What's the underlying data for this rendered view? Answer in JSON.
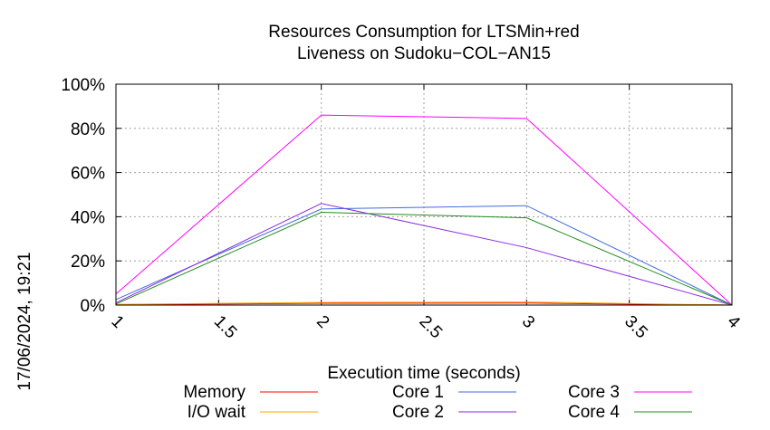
{
  "chart_data": {
    "type": "line",
    "title": "Resources Consumption for LTSMin+red",
    "subtitle": "Liveness on Sudoku−COL−AN15",
    "xlabel": "Execution time (seconds)",
    "ylabel": "",
    "timestamp": "17/06/2024, 19:21",
    "xlim": [
      1,
      4
    ],
    "ylim": [
      0,
      100
    ],
    "x_ticks": [
      "1",
      "1.5",
      "2",
      "2.5",
      "3",
      "3.5",
      "4"
    ],
    "y_ticks": [
      "0%",
      "20%",
      "40%",
      "60%",
      "80%",
      "100%"
    ],
    "grid": true,
    "legend_position": "bottom",
    "x": [
      1,
      2,
      3,
      4
    ],
    "series": [
      {
        "name": "Memory",
        "color": "#ff0000",
        "values": [
          0.2,
          0.8,
          0.9,
          0
        ]
      },
      {
        "name": "I/O wait",
        "color": "#ffa500",
        "values": [
          0.3,
          1.2,
          1.4,
          0
        ]
      },
      {
        "name": "Core 1",
        "color": "#4169e1",
        "values": [
          2.5,
          43.5,
          45,
          0
        ]
      },
      {
        "name": "Core 2",
        "color": "#8a2be2",
        "values": [
          1,
          46,
          26,
          0
        ]
      },
      {
        "name": "Core 3",
        "color": "#ff00ff",
        "values": [
          5,
          86,
          84.5,
          0
        ]
      },
      {
        "name": "Core 4",
        "color": "#228b22",
        "values": [
          0.5,
          42,
          39.5,
          0
        ]
      }
    ]
  }
}
